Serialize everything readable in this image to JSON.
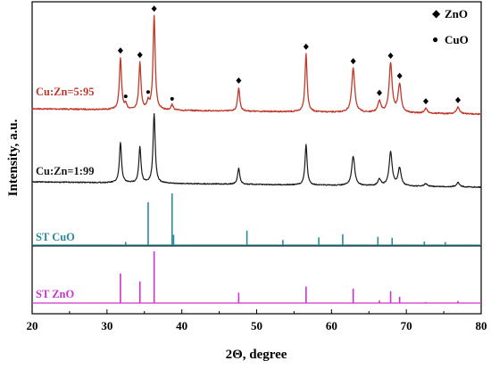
{
  "chart_data": {
    "type": "line",
    "xlabel": "2Θ, degree",
    "ylabel": "Intensity, a.u.",
    "xlim": [
      20,
      80
    ],
    "xticks": [
      20,
      30,
      40,
      50,
      60,
      70,
      80
    ],
    "grid": false,
    "legend": {
      "placement": "top-right",
      "entries": [
        {
          "marker": "◆",
          "label": "ZnO"
        },
        {
          "marker": "●",
          "label": "CuO"
        }
      ]
    },
    "colors": {
      "curve_595": "#c0392b",
      "curve_199": "#1a1a1a",
      "st_cuo": "#2a8a9a",
      "st_zno": "#cc33cc",
      "marker": "#000000"
    },
    "series": [
      {
        "name": "Cu:Zn=5:95",
        "peaks": [
          {
            "x": 31.8,
            "h": 0.55
          },
          {
            "x": 34.4,
            "h": 0.5
          },
          {
            "x": 36.3,
            "h": 1.0
          },
          {
            "x": 47.6,
            "h": 0.25
          },
          {
            "x": 56.6,
            "h": 0.62
          },
          {
            "x": 62.9,
            "h": 0.47
          },
          {
            "x": 66.4,
            "h": 0.12
          },
          {
            "x": 67.9,
            "h": 0.52
          },
          {
            "x": 69.1,
            "h": 0.3
          },
          {
            "x": 72.6,
            "h": 0.05
          },
          {
            "x": 76.9,
            "h": 0.07
          },
          {
            "x": 32.5,
            "h": 0.05
          },
          {
            "x": 35.5,
            "h": 0.08
          },
          {
            "x": 38.7,
            "h": 0.06
          }
        ],
        "zno_markers": [
          31.8,
          34.4,
          36.3,
          47.6,
          56.6,
          62.9,
          66.4,
          67.9,
          69.1,
          72.6,
          76.9
        ],
        "cuo_markers": [
          32.5,
          35.5,
          38.7
        ]
      },
      {
        "name": "Cu:Zn=1:99",
        "peaks": [
          {
            "x": 31.8,
            "h": 0.45
          },
          {
            "x": 34.4,
            "h": 0.4
          },
          {
            "x": 36.3,
            "h": 0.78
          },
          {
            "x": 47.6,
            "h": 0.18
          },
          {
            "x": 56.6,
            "h": 0.45
          },
          {
            "x": 62.9,
            "h": 0.33
          },
          {
            "x": 66.4,
            "h": 0.07
          },
          {
            "x": 67.9,
            "h": 0.38
          },
          {
            "x": 69.1,
            "h": 0.2
          },
          {
            "x": 72.6,
            "h": 0.03
          },
          {
            "x": 76.9,
            "h": 0.05
          }
        ]
      },
      {
        "name": "ST CuO",
        "sticks": [
          {
            "x": 32.5,
            "h": 0.06
          },
          {
            "x": 35.5,
            "h": 0.83
          },
          {
            "x": 38.7,
            "h": 1.0
          },
          {
            "x": 38.9,
            "h": 0.2
          },
          {
            "x": 48.7,
            "h": 0.28
          },
          {
            "x": 53.5,
            "h": 0.1
          },
          {
            "x": 58.3,
            "h": 0.15
          },
          {
            "x": 61.5,
            "h": 0.21
          },
          {
            "x": 66.2,
            "h": 0.16
          },
          {
            "x": 68.1,
            "h": 0.14
          },
          {
            "x": 72.4,
            "h": 0.07
          },
          {
            "x": 75.2,
            "h": 0.06
          }
        ]
      },
      {
        "name": "ST ZnO",
        "sticks": [
          {
            "x": 31.8,
            "h": 0.57
          },
          {
            "x": 34.4,
            "h": 0.42
          },
          {
            "x": 36.3,
            "h": 1.0
          },
          {
            "x": 47.6,
            "h": 0.2
          },
          {
            "x": 56.6,
            "h": 0.32
          },
          {
            "x": 62.9,
            "h": 0.28
          },
          {
            "x": 66.4,
            "h": 0.05
          },
          {
            "x": 67.9,
            "h": 0.23
          },
          {
            "x": 69.1,
            "h": 0.12
          },
          {
            "x": 72.6,
            "h": 0.02
          },
          {
            "x": 76.9,
            "h": 0.04
          }
        ]
      }
    ]
  }
}
